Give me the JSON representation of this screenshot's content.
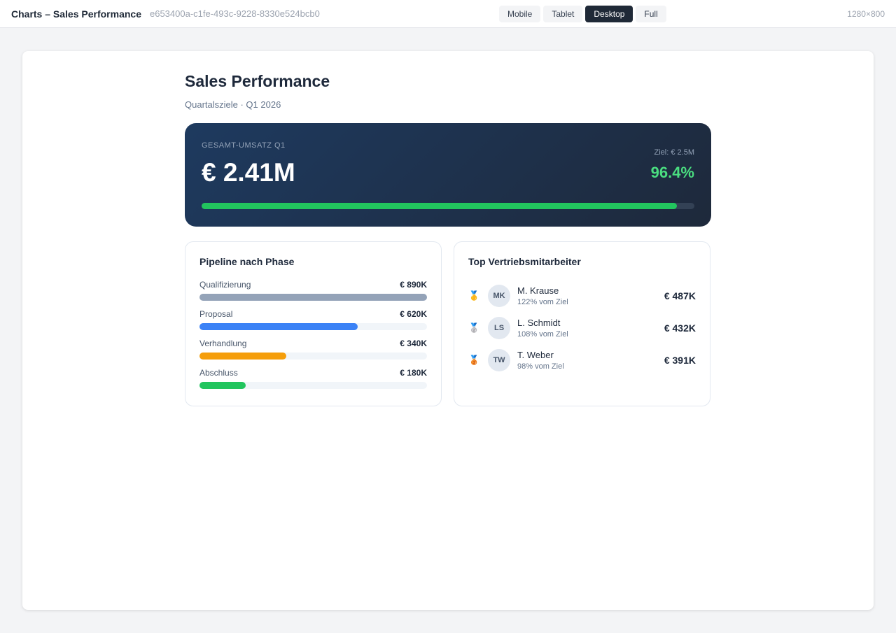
{
  "topbar": {
    "title": "Charts – Sales Performance",
    "id": "e653400a-c1fe-493c-9228-8330e524bcb0",
    "viewports": [
      "Mobile",
      "Tablet",
      "Desktop",
      "Full"
    ],
    "active": "Desktop",
    "dims": "1280×800"
  },
  "page": {
    "title": "Sales Performance",
    "subtitle": "Quartalsziele · Q1 2026"
  },
  "hero": {
    "label": "GESAMT-UMSATZ Q1",
    "value": "€ 2.41M",
    "goal": "Ziel: € 2.5M",
    "percent_label": "96.4%",
    "progress": 96.4,
    "color": "#22c55e"
  },
  "pipeline": {
    "title": "Pipeline nach Phase",
    "max": 890,
    "items": [
      {
        "label": "Qualifizierung",
        "value_label": "€ 890K",
        "value": 890,
        "color": "#94a3b8"
      },
      {
        "label": "Proposal",
        "value_label": "€ 620K",
        "value": 620,
        "color": "#3b82f6"
      },
      {
        "label": "Verhandlung",
        "value_label": "€ 340K",
        "value": 340,
        "color": "#f59e0b"
      },
      {
        "label": "Abschluss",
        "value_label": "€ 180K",
        "value": 180,
        "color": "#22c55e"
      }
    ]
  },
  "reps": {
    "title": "Top Vertriebsmitarbeiter",
    "items": [
      {
        "medal": "🥇",
        "initials": "MK",
        "name": "M. Krause",
        "sub": "122% vom Ziel",
        "amount": "€ 487K"
      },
      {
        "medal": "🥈",
        "initials": "LS",
        "name": "L. Schmidt",
        "sub": "108% vom Ziel",
        "amount": "€ 432K"
      },
      {
        "medal": "🥉",
        "initials": "TW",
        "name": "T. Weber",
        "sub": "98% vom Ziel",
        "amount": "€ 391K"
      }
    ]
  }
}
